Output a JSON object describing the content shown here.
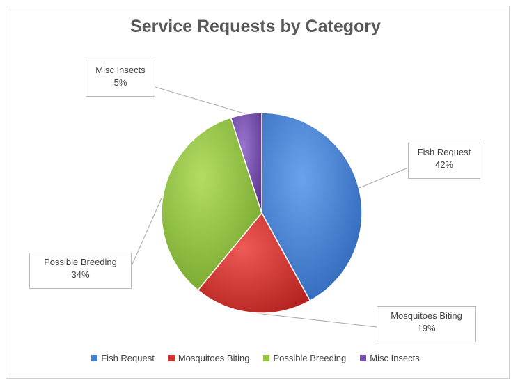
{
  "chart_data": {
    "type": "pie",
    "title": "Service Requests by Category",
    "categories": [
      "Fish Request",
      "Mosquitoes Biting",
      "Possible Breeding",
      "Misc Insects"
    ],
    "values": [
      42,
      19,
      34,
      5
    ],
    "labels": [
      "42%",
      "19%",
      "34%",
      "5%"
    ],
    "colors": [
      "#3f7fd4",
      "#d9312e",
      "#93c43e",
      "#7b4fb0"
    ],
    "legend_position": "bottom"
  }
}
